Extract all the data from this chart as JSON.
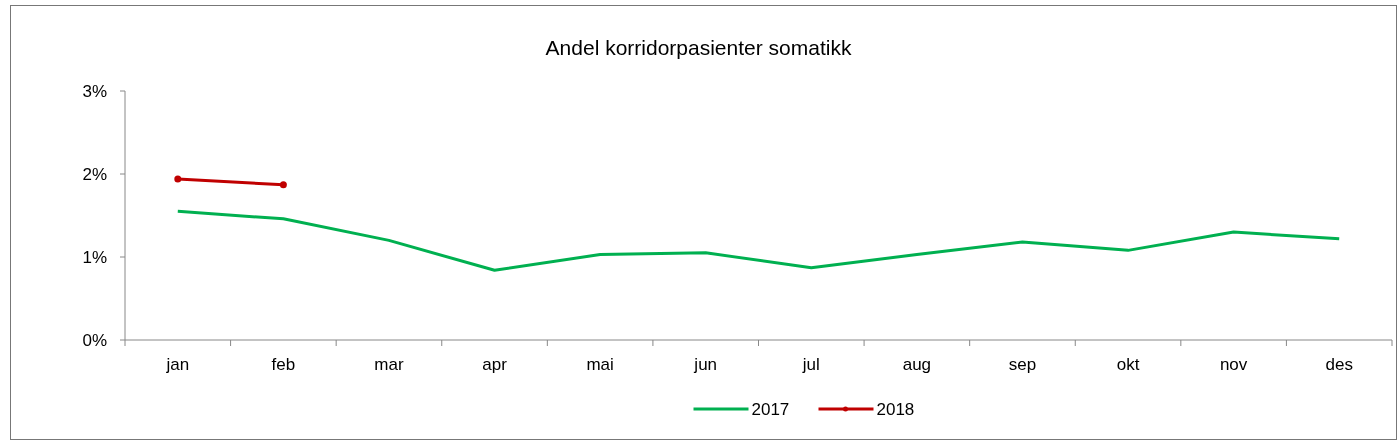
{
  "chart_data": {
    "type": "line",
    "title": "Andel korridorpasienter somatikk",
    "categories": [
      "jan",
      "feb",
      "mar",
      "apr",
      "mai",
      "jun",
      "jul",
      "aug",
      "sep",
      "okt",
      "nov",
      "des"
    ],
    "series": [
      {
        "name": "2017",
        "color": "#00b050",
        "marker": "none",
        "values": [
          1.55,
          1.46,
          1.2,
          0.84,
          1.03,
          1.05,
          0.87,
          1.03,
          1.18,
          1.08,
          1.3,
          1.22
        ]
      },
      {
        "name": "2018",
        "color": "#c00000",
        "marker": "circle",
        "values": [
          1.94,
          1.87,
          null,
          null,
          null,
          null,
          null,
          null,
          null,
          null,
          null,
          null
        ]
      }
    ],
    "ylim": [
      0,
      3
    ],
    "yticks": [
      {
        "value": 0,
        "label": "0%"
      },
      {
        "value": 1,
        "label": "1%"
      },
      {
        "value": 2,
        "label": "2%"
      },
      {
        "value": 3,
        "label": "3%"
      }
    ],
    "grid": false,
    "legend": "bottom"
  }
}
